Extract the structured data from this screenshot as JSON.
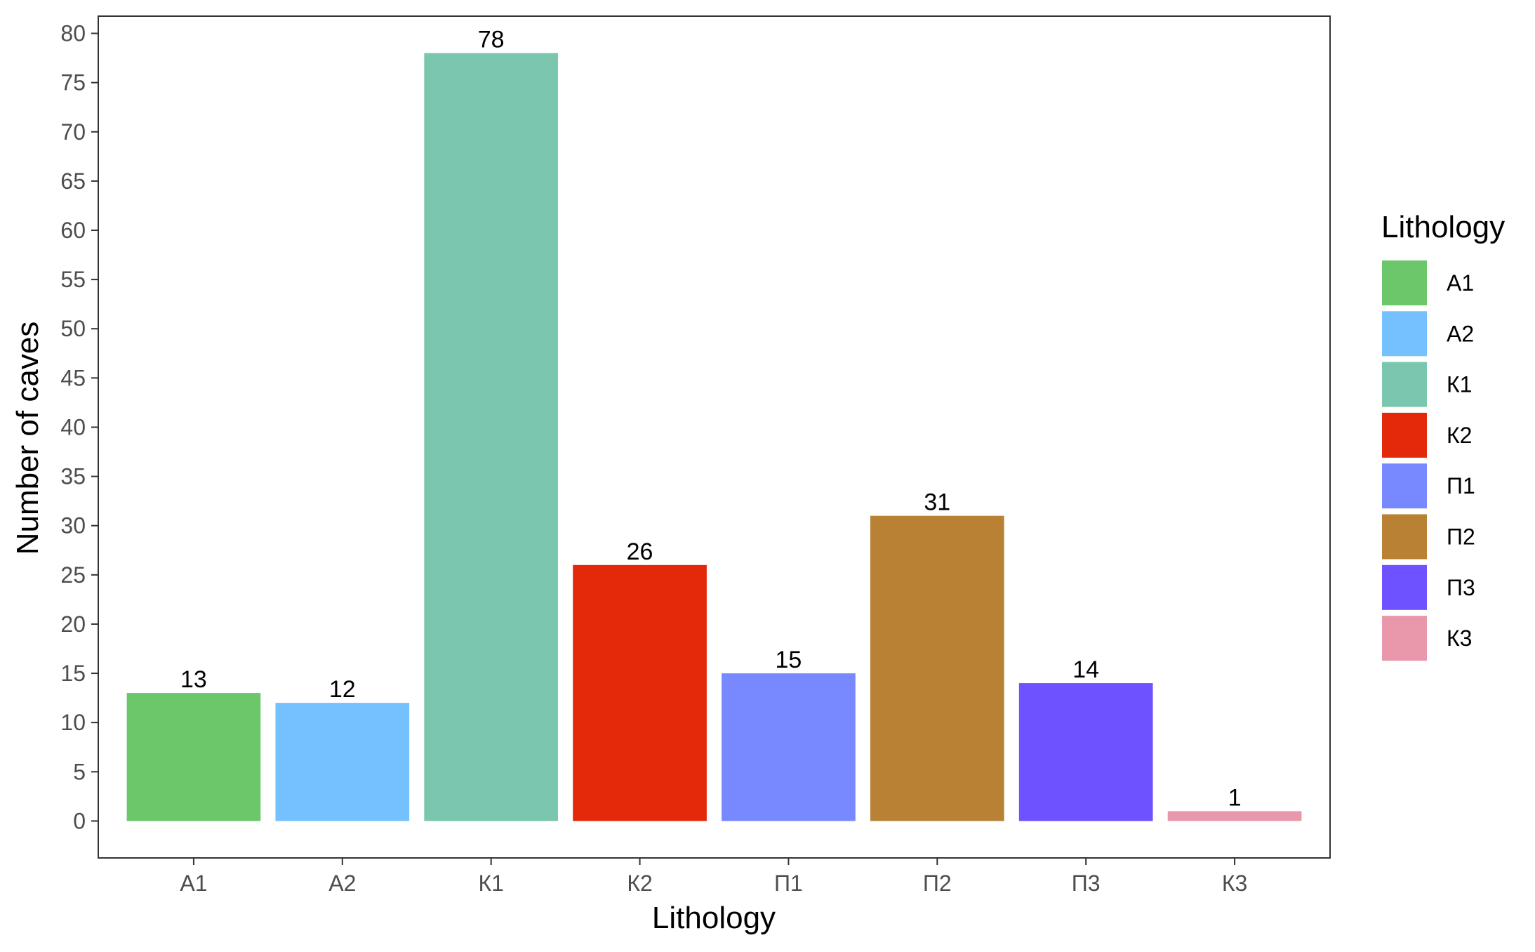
{
  "chart_data": {
    "type": "bar",
    "title": "",
    "xlabel": "Lithology",
    "ylabel": "Number of caves",
    "categories": [
      "А1",
      "А2",
      "К1",
      "К2",
      "П1",
      "П2",
      "П3",
      "К3"
    ],
    "values": [
      13,
      12,
      78,
      26,
      15,
      31,
      14,
      1
    ],
    "colors": [
      "#6CC66A",
      "#75C0FF",
      "#7AC6AE",
      "#E3290A",
      "#7888FF",
      "#B88134",
      "#6F52FF",
      "#E898AA"
    ],
    "ylim": [
      -3.75,
      81.75
    ],
    "yticks": [
      0,
      5,
      10,
      15,
      20,
      25,
      30,
      35,
      40,
      45,
      50,
      55,
      60,
      65,
      70,
      75,
      80
    ],
    "grid": false,
    "legend": {
      "title": "Lithology",
      "placement": "right",
      "entries": [
        "А1",
        "А2",
        "К1",
        "К2",
        "П1",
        "П2",
        "П3",
        "К3"
      ]
    }
  }
}
